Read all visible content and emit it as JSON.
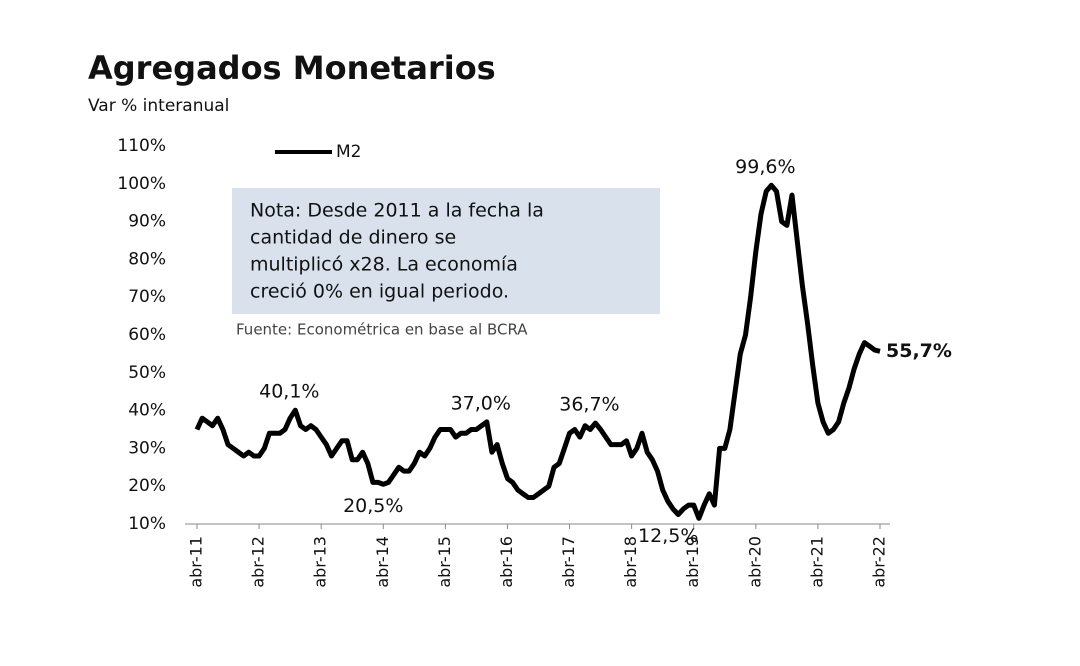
{
  "chart_data": {
    "type": "line",
    "title": "Agregados Monetarios",
    "subtitle": "Var % interanual",
    "note": [
      "Nota: Desde 2011 a la fecha la",
      "cantidad de dinero se",
      "multiplicó x28. La economía",
      "creció 0% en igual periodo."
    ],
    "source": "Fuente: Econométrica en base al BCRA",
    "categories": [
      "abr-11",
      null,
      null,
      null,
      null,
      null,
      null,
      null,
      null,
      null,
      null,
      null,
      "abr-12",
      null,
      null,
      null,
      null,
      null,
      null,
      null,
      null,
      null,
      null,
      null,
      "abr-13",
      null,
      null,
      null,
      null,
      null,
      null,
      null,
      null,
      null,
      null,
      null,
      "abr-14",
      null,
      null,
      null,
      null,
      null,
      null,
      null,
      null,
      null,
      null,
      null,
      "abr-15",
      null,
      null,
      null,
      null,
      null,
      null,
      null,
      null,
      null,
      null,
      null,
      "abr-16",
      null,
      null,
      null,
      null,
      null,
      null,
      null,
      null,
      null,
      null,
      null,
      "abr-17",
      null,
      null,
      null,
      null,
      null,
      null,
      null,
      null,
      null,
      null,
      null,
      "abr-18",
      null,
      null,
      null,
      null,
      null,
      null,
      null,
      null,
      null,
      null,
      null,
      "abr-19",
      null,
      null,
      null,
      null,
      null,
      null,
      null,
      null,
      null,
      null,
      null,
      "abr-20",
      null,
      null,
      null,
      null,
      null,
      null,
      null,
      null,
      null,
      null,
      null,
      "abr-21",
      null,
      null,
      null,
      null,
      null,
      null,
      null,
      null,
      null,
      null,
      null,
      "abr-22"
    ],
    "series": [
      {
        "name": "M2",
        "color": "#000000",
        "values": [
          35,
          38,
          37,
          36,
          38,
          35,
          31,
          30,
          29,
          28,
          29,
          28,
          28,
          30,
          34,
          34,
          34,
          35,
          38,
          40.1,
          36,
          35,
          36,
          35,
          33,
          31,
          28,
          30,
          32,
          32,
          27,
          27,
          29,
          26,
          21,
          21,
          20.5,
          21,
          23,
          25,
          24,
          24,
          26,
          29,
          28,
          30,
          33,
          35,
          35,
          35,
          33,
          34,
          34,
          35,
          35,
          36,
          37.0,
          29,
          31,
          26,
          22,
          21,
          19,
          18,
          17,
          17,
          18,
          19,
          20,
          25,
          26,
          30,
          34,
          35,
          33,
          36,
          35,
          36.7,
          35,
          33,
          31,
          31,
          31,
          32,
          28,
          30,
          34,
          29,
          27,
          24,
          19,
          16,
          14,
          12.5,
          14,
          15,
          15,
          11.5,
          15,
          18,
          15,
          30,
          30,
          35,
          45,
          55,
          60,
          70,
          82,
          92,
          98,
          99.6,
          98,
          90,
          89,
          97,
          85,
          73,
          63,
          52,
          42,
          37,
          34,
          35,
          37,
          42,
          46,
          51,
          55,
          58,
          57,
          56,
          55.7
        ],
        "value_labels": [
          null,
          null,
          null,
          null,
          null,
          null,
          null,
          null,
          null,
          null,
          null,
          null,
          null,
          null,
          null,
          null,
          null,
          null,
          null,
          "40,1%",
          null,
          null,
          null,
          null,
          null,
          null,
          null,
          null,
          null,
          null,
          null,
          null,
          null,
          null,
          null,
          null,
          "20,5%",
          null,
          null,
          null,
          null,
          null,
          null,
          null,
          null,
          null,
          null,
          null,
          null,
          null,
          null,
          null,
          null,
          null,
          null,
          null,
          "37,0%",
          null,
          null,
          null,
          null,
          null,
          null,
          null,
          null,
          null,
          null,
          null,
          null,
          null,
          null,
          null,
          null,
          null,
          null,
          null,
          null,
          "36,7%",
          null,
          null,
          null,
          null,
          null,
          null,
          null,
          null,
          null,
          null,
          null,
          null,
          null,
          null,
          null,
          "12,5%",
          null,
          null,
          null,
          null,
          null,
          null,
          null,
          null,
          null,
          null,
          null,
          null,
          null,
          null,
          null,
          null,
          null,
          "99,6%",
          null,
          null,
          null,
          null,
          null,
          null,
          null,
          null,
          null,
          null,
          null,
          null,
          null,
          null,
          null,
          null,
          null,
          null,
          null,
          null,
          "55,7%"
        ]
      }
    ],
    "ylim": [
      10,
      110
    ],
    "yticks": [
      {
        "value": 10,
        "label": "10%"
      },
      {
        "value": 20,
        "label": "20%"
      },
      {
        "value": 30,
        "label": "30%"
      },
      {
        "value": 40,
        "label": "40%"
      },
      {
        "value": 50,
        "label": "50%"
      },
      {
        "value": 60,
        "label": "60%"
      },
      {
        "value": 70,
        "label": "70%"
      },
      {
        "value": 80,
        "label": "80%"
      },
      {
        "value": 90,
        "label": "90%"
      },
      {
        "value": 100,
        "label": "100%"
      },
      {
        "value": 110,
        "label": "110%"
      }
    ],
    "grid": false
  }
}
